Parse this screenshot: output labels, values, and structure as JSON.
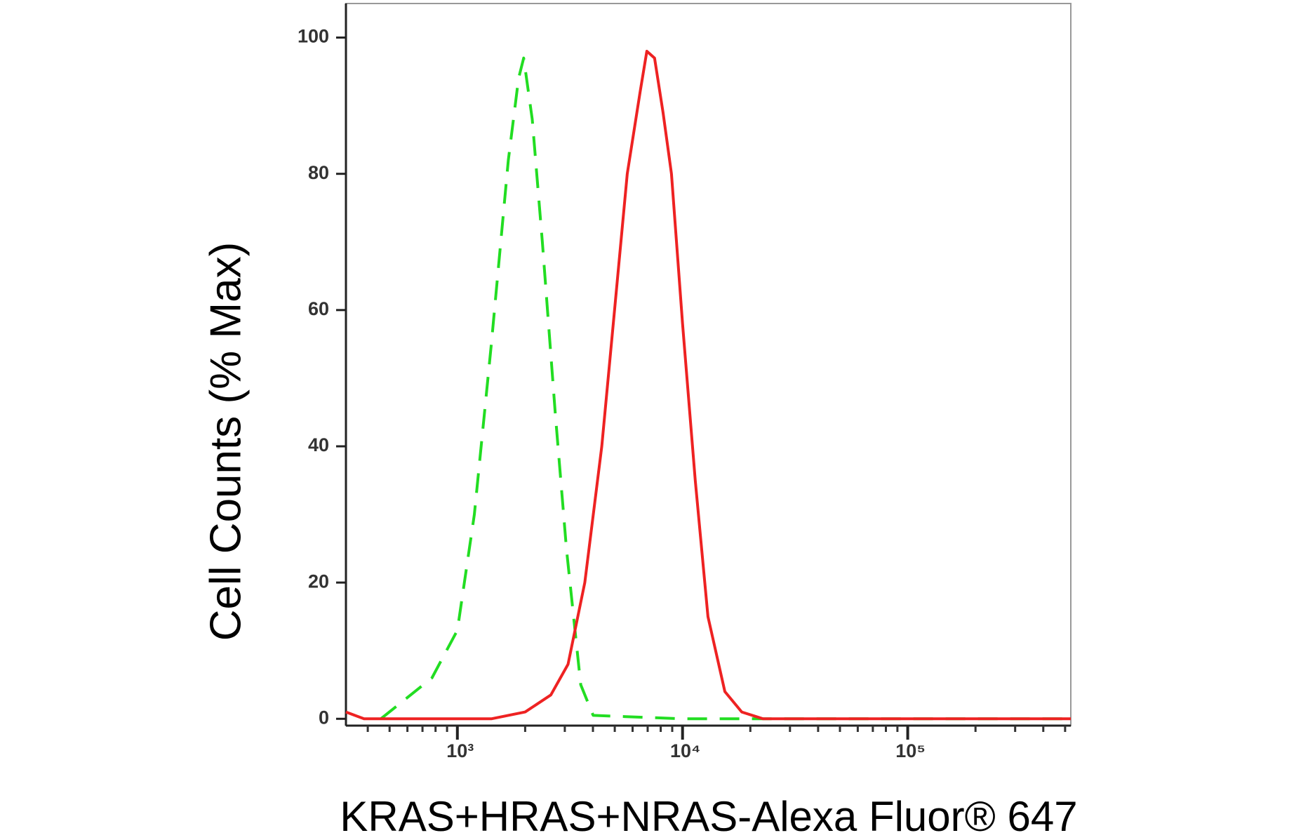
{
  "chart_data": {
    "type": "line",
    "xlabel": "KRAS+HRAS+NRAS-Alexa Fluor® 647",
    "ylabel": "Cell Counts (% Max)",
    "xscale": "log",
    "xlim": [
      320,
      530000
    ],
    "ylim": [
      -1,
      105
    ],
    "xticks": [
      {
        "value": 1000,
        "label": "10³"
      },
      {
        "value": 10000,
        "label": "10⁴"
      },
      {
        "value": 100000,
        "label": "10⁵"
      }
    ],
    "yticks": [
      0,
      20,
      40,
      60,
      80,
      100
    ],
    "series": [
      {
        "color": "#22dd22",
        "dash": true,
        "x": [
          457,
          771,
          1000,
          1190,
          1415,
          1684,
          1870,
          1970,
          2150,
          2385,
          2720,
          3050,
          3530,
          4010,
          10000,
          100000,
          530000
        ],
        "values": [
          0,
          6,
          13,
          30,
          55,
          82,
          94,
          97,
          88,
          70,
          45,
          25,
          5,
          0.5,
          0,
          0,
          0
        ]
      },
      {
        "color": "#ee2222",
        "dash": false,
        "x": [
          320,
          385,
          1415,
          2000,
          2600,
          3100,
          3680,
          4380,
          4990,
          5680,
          6480,
          6940,
          7510,
          8190,
          8930,
          10000,
          11390,
          12970,
          15420,
          18330,
          22800,
          100000,
          530000
        ],
        "values": [
          1,
          0,
          0,
          1,
          3.5,
          8,
          20,
          40,
          60,
          80,
          92,
          98,
          97,
          89,
          80,
          58,
          35,
          15,
          4,
          1,
          0,
          0,
          0
        ]
      }
    ]
  }
}
